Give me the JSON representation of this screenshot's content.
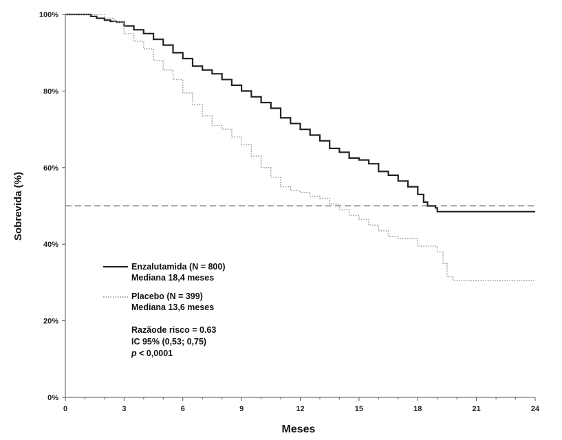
{
  "chart_data": {
    "type": "line",
    "title": "",
    "xlabel": "Meses",
    "ylabel": "Sobrevida (%)",
    "xlim": [
      0,
      24
    ],
    "ylim": [
      0,
      100
    ],
    "x_ticks": [
      0,
      3,
      6,
      9,
      12,
      15,
      18,
      21,
      24
    ],
    "x_tick_labels": [
      "0",
      "3",
      "6",
      "9",
      "12",
      "15",
      "18",
      "21",
      "24"
    ],
    "y_ticks": [
      0,
      20,
      40,
      60,
      80,
      100
    ],
    "y_tick_labels": [
      "0%",
      "20%",
      "40%",
      "60%",
      "80%",
      "100%"
    ],
    "grid": false,
    "reference_line": {
      "y": 50,
      "style": "dashed",
      "color": "#555555"
    },
    "series": [
      {
        "name": "Enzalutamida (N = 800)",
        "legend_sub": "Mediana 18,4 meses",
        "style": "solid",
        "color": "#222222",
        "points": [
          [
            0,
            100
          ],
          [
            0.5,
            100
          ],
          [
            1,
            100
          ],
          [
            1.3,
            99.5
          ],
          [
            1.6,
            99
          ],
          [
            2,
            98.5
          ],
          [
            2.3,
            98.2
          ],
          [
            2.6,
            98
          ],
          [
            3,
            97
          ],
          [
            3.5,
            96
          ],
          [
            4,
            95
          ],
          [
            4.5,
            93.5
          ],
          [
            5,
            92
          ],
          [
            5.5,
            90
          ],
          [
            6,
            88.5
          ],
          [
            6.5,
            86.5
          ],
          [
            7,
            85.5
          ],
          [
            7.5,
            84.5
          ],
          [
            8,
            83
          ],
          [
            8.5,
            81.5
          ],
          [
            9,
            80
          ],
          [
            9.5,
            78.5
          ],
          [
            10,
            77
          ],
          [
            10.5,
            75.5
          ],
          [
            11,
            73
          ],
          [
            11.5,
            71.5
          ],
          [
            12,
            70
          ],
          [
            12.5,
            68.5
          ],
          [
            13,
            67
          ],
          [
            13.5,
            65
          ],
          [
            14,
            64
          ],
          [
            14.5,
            62.5
          ],
          [
            15,
            62
          ],
          [
            15.5,
            61
          ],
          [
            16,
            59
          ],
          [
            16.5,
            58
          ],
          [
            17,
            56.5
          ],
          [
            17.5,
            55
          ],
          [
            18,
            53
          ],
          [
            18.3,
            51
          ],
          [
            18.5,
            50
          ],
          [
            18.9,
            49.5
          ],
          [
            19,
            48.5
          ],
          [
            20,
            48.5
          ],
          [
            21,
            48.5
          ],
          [
            22,
            48.5
          ],
          [
            23,
            48.5
          ],
          [
            24,
            48.5
          ]
        ]
      },
      {
        "name": "Placebo (N = 399)",
        "legend_sub": "Mediana 13,6 meses",
        "style": "dotted",
        "color": "#999999",
        "points": [
          [
            0,
            100
          ],
          [
            1,
            100
          ],
          [
            2,
            99
          ],
          [
            2.5,
            98
          ],
          [
            3,
            95
          ],
          [
            3.5,
            93
          ],
          [
            4,
            91
          ],
          [
            4.5,
            88
          ],
          [
            5,
            85.5
          ],
          [
            5.5,
            83
          ],
          [
            6,
            79.5
          ],
          [
            6.5,
            76.5
          ],
          [
            7,
            73.5
          ],
          [
            7.5,
            71
          ],
          [
            8,
            70
          ],
          [
            8.5,
            68
          ],
          [
            9,
            66
          ],
          [
            9.5,
            63
          ],
          [
            10,
            60
          ],
          [
            10.5,
            57.5
          ],
          [
            11,
            55
          ],
          [
            11.5,
            54
          ],
          [
            12,
            53.5
          ],
          [
            12.5,
            52.5
          ],
          [
            13,
            52
          ],
          [
            13.5,
            50.5
          ],
          [
            14,
            49
          ],
          [
            14.5,
            47.5
          ],
          [
            15,
            46.5
          ],
          [
            15.5,
            45
          ],
          [
            16,
            43.5
          ],
          [
            16.5,
            42
          ],
          [
            17,
            41.5
          ],
          [
            17.5,
            41.5
          ],
          [
            18,
            39.5
          ],
          [
            18.5,
            39.5
          ],
          [
            19,
            38
          ],
          [
            19.3,
            35
          ],
          [
            19.5,
            31.5
          ],
          [
            19.8,
            30.5
          ],
          [
            20,
            30.5
          ],
          [
            21,
            30.5
          ],
          [
            22,
            30.5
          ],
          [
            23,
            30.5
          ],
          [
            24,
            30.5
          ]
        ]
      }
    ],
    "annotations": {
      "hazard_ratio": "Razãode risco = 0.63",
      "ci": "IC 95% (0,53; 0,75)",
      "p_italic": "p",
      "p_rest": " < 0,0001"
    }
  }
}
